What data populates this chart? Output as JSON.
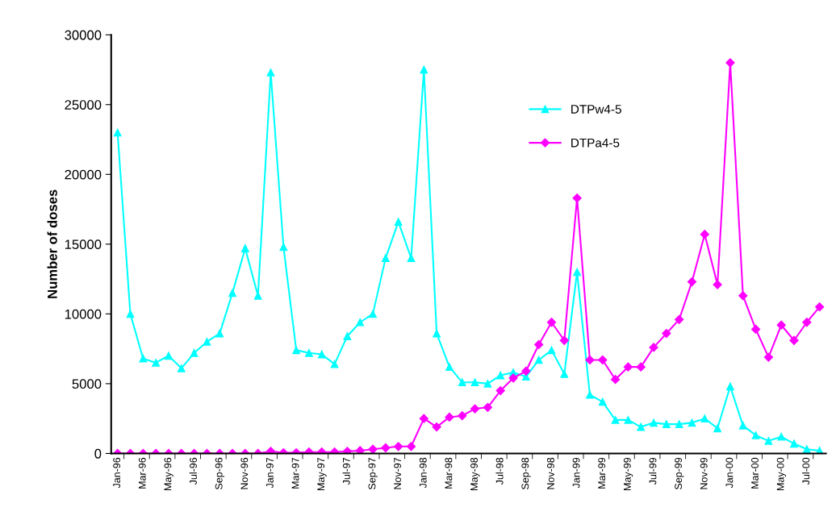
{
  "chart_data": {
    "type": "line",
    "ylabel": "Number of doses",
    "categories": [
      "Jan-96",
      null,
      "Mar-96",
      null,
      "May-96",
      null,
      "Jul-96",
      null,
      "Sep-96",
      null,
      "Nov-96",
      null,
      "Jan-97",
      null,
      "Mar-97",
      null,
      "May-97",
      null,
      "Jul-97",
      null,
      "Sep-97",
      null,
      "Nov-97",
      null,
      "Jan-98",
      null,
      "Mar-98",
      null,
      "May-98",
      null,
      "Jul-98",
      null,
      "Sep-98",
      null,
      "Nov-98",
      null,
      "Jan-99",
      null,
      "Mar-99",
      null,
      "May-99",
      null,
      "Jul-99",
      null,
      "Sep-99",
      null,
      "Nov-99",
      null,
      "Jan-00",
      null,
      "Mar-00",
      null,
      "May-00",
      null,
      "Jul-00",
      null
    ],
    "series": [
      {
        "name": "DTPw4-5",
        "color": "#00ffff",
        "marker": "triangle",
        "values": [
          23000,
          10000,
          6800,
          6500,
          7000,
          6100,
          7200,
          8000,
          8600,
          11500,
          14700,
          11300,
          27300,
          14800,
          7400,
          7200,
          7100,
          6400,
          8400,
          9400,
          10000,
          14000,
          16600,
          14000,
          27500,
          8600,
          6200,
          5100,
          5100,
          5000,
          5600,
          5800,
          5500,
          6700,
          7400,
          5700,
          13000,
          4200,
          3700,
          2400,
          2400,
          1900,
          2200,
          2100,
          2100,
          2200,
          2500,
          1800,
          4800,
          2000,
          1300,
          900,
          1200,
          700,
          300,
          200
        ]
      },
      {
        "name": "DTPa4-5",
        "color": "#ff00ff",
        "marker": "diamond",
        "values": [
          0,
          0,
          0,
          0,
          0,
          0,
          0,
          0,
          0,
          0,
          0,
          0,
          150,
          50,
          50,
          100,
          100,
          100,
          150,
          200,
          300,
          400,
          500,
          500,
          2500,
          1900,
          2600,
          2700,
          3200,
          3300,
          4500,
          5400,
          5900,
          7800,
          9400,
          8100,
          18300,
          6700,
          6700,
          5300,
          6200,
          6200,
          7600,
          8600,
          9600,
          12300,
          15700,
          12100,
          28000,
          11300,
          8900,
          6900,
          9200,
          8100,
          9400,
          10500
        ]
      }
    ],
    "ylim": [
      0,
      30000
    ],
    "yticks": [
      0,
      5000,
      10000,
      15000,
      20000,
      25000,
      30000
    ],
    "grid": false,
    "legend": "top right",
    "line_style": "solid"
  }
}
